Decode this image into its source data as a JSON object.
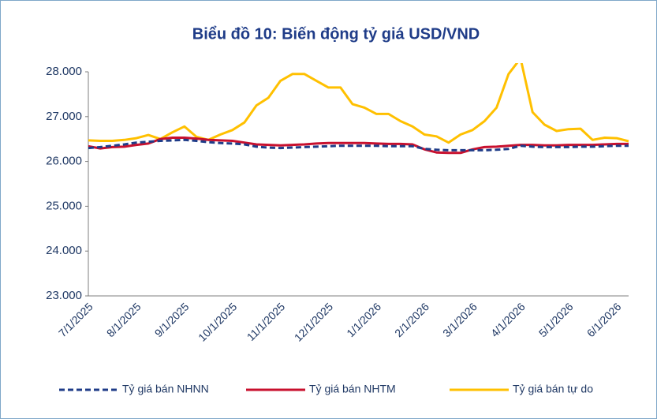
{
  "chart_data": {
    "type": "line",
    "title": "Biểu đồ 10: Biến động tỷ giá USD/VND",
    "categories": [
      "7/1/2025",
      null,
      null,
      null,
      "8/1/2025",
      null,
      null,
      null,
      "9/1/2025",
      null,
      null,
      null,
      "10/1/2025",
      null,
      null,
      null,
      "11/1/2025",
      null,
      null,
      null,
      "12/1/2025",
      null,
      null,
      null,
      "1/1/2026",
      null,
      null,
      null,
      "2/1/2026",
      null,
      null,
      null,
      "3/1/2026",
      null,
      null,
      null,
      "4/1/2026",
      null,
      null,
      null,
      "5/1/2026",
      null,
      null,
      null,
      "6/1/2026",
      null
    ],
    "series": [
      {
        "name": "Tỷ giá bán NHNN",
        "color": "#1f3c88",
        "dashed": true,
        "values": [
          26300,
          26320,
          26350,
          26380,
          26420,
          26440,
          26460,
          26470,
          26480,
          26460,
          26430,
          26410,
          26400,
          26380,
          26330,
          26310,
          26300,
          26310,
          26320,
          26330,
          26340,
          26350,
          26350,
          26350,
          26350,
          26340,
          26340,
          26340,
          26280,
          26260,
          26250,
          26250,
          26250,
          26250,
          26260,
          26280,
          26350,
          26330,
          26320,
          26320,
          26320,
          26330,
          26330,
          26340,
          26350,
          26350
        ]
      },
      {
        "name": "Tỷ giá bán NHTM",
        "color": "#c8102e",
        "dashed": false,
        "values": [
          26340,
          26290,
          26320,
          26330,
          26370,
          26400,
          26500,
          26530,
          26530,
          26510,
          26480,
          26470,
          26460,
          26420,
          26380,
          26370,
          26360,
          26370,
          26380,
          26400,
          26410,
          26410,
          26410,
          26410,
          26400,
          26390,
          26390,
          26380,
          26270,
          26200,
          26190,
          26190,
          26270,
          26320,
          26330,
          26350,
          26370,
          26370,
          26360,
          26360,
          26370,
          26370,
          26370,
          26380,
          26390,
          26390
        ]
      },
      {
        "name": "Tỷ giá bán tự do",
        "color": "#ffc000",
        "dashed": false,
        "values": [
          26470,
          26460,
          26460,
          26480,
          26520,
          26590,
          26500,
          26650,
          26780,
          26550,
          26480,
          26600,
          26700,
          26870,
          27250,
          27420,
          27800,
          27950,
          27950,
          27800,
          27650,
          27650,
          27280,
          27200,
          27060,
          27060,
          26900,
          26780,
          26600,
          26560,
          26420,
          26600,
          26700,
          26900,
          27200,
          27950,
          28300,
          27100,
          26820,
          26680,
          26720,
          26730,
          26480,
          26530,
          26520,
          26450
        ]
      }
    ],
    "ylim": [
      23000,
      28000
    ],
    "yticks": [
      {
        "value": 23000,
        "label": "23.000"
      },
      {
        "value": 24000,
        "label": "24.000"
      },
      {
        "value": 25000,
        "label": "25.000"
      },
      {
        "value": 26000,
        "label": "26.000"
      },
      {
        "value": 27000,
        "label": "27.000"
      },
      {
        "value": 28000,
        "label": "28.000"
      }
    ],
    "legend": "bottom"
  }
}
